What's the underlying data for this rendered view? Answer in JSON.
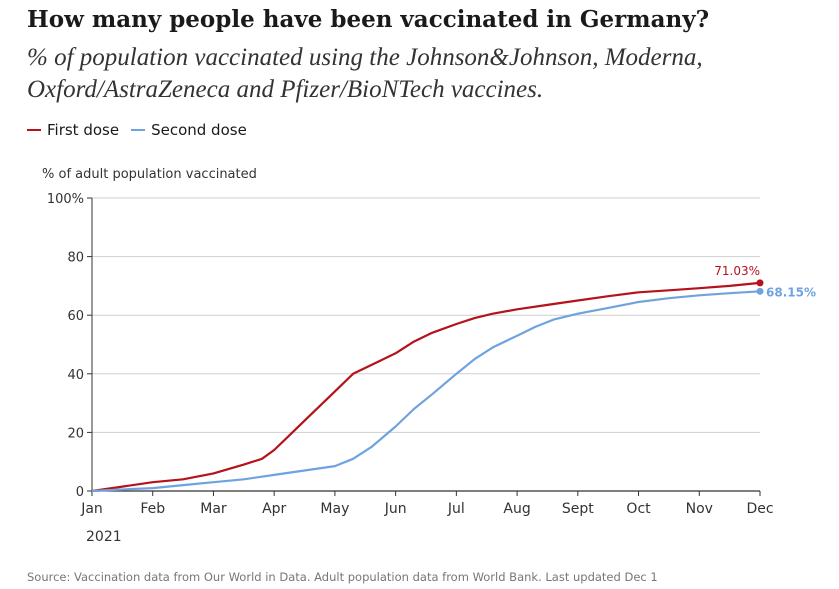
{
  "chart_data": {
    "type": "line",
    "title": "How many people have been vaccinated in Germany?",
    "subtitle": "% of population vaccinated using the Johnson&Johnson, Moderna, Oxford/AstraZeneca and Pfizer/BioNTech vaccines.",
    "ylabel": "% of adult population vaccinated",
    "xlabel": "",
    "ylim": [
      0,
      100
    ],
    "yticks": [
      0,
      20,
      40,
      60,
      80,
      100
    ],
    "ytick_labels": [
      "0",
      "20",
      "40",
      "60",
      "80",
      "100%"
    ],
    "xlim": [
      0,
      11
    ],
    "xticks": [
      0,
      1,
      2,
      3,
      4,
      5,
      6,
      7,
      8,
      9,
      10,
      11
    ],
    "xtick_labels": [
      "Jan",
      "Feb",
      "Mar",
      "Apr",
      "May",
      "Jun",
      "Jul",
      "Aug",
      "Sept",
      "Oct",
      "Nov",
      "Dec"
    ],
    "year_label": "2021",
    "grid": "horizontal",
    "legend_position": "top-left",
    "series": [
      {
        "name": "First dose",
        "color": "#b5121b",
        "end_label": "71.03%",
        "x": [
          0,
          0.5,
          1,
          1.5,
          2,
          2.5,
          2.8,
          3,
          3.3,
          3.6,
          4,
          4.3,
          4.6,
          5,
          5.3,
          5.6,
          6,
          6.3,
          6.6,
          7,
          7.5,
          8,
          8.5,
          9,
          9.5,
          10,
          10.5,
          11
        ],
        "y": [
          0,
          1.5,
          3,
          4,
          6,
          9,
          11,
          14,
          20,
          26,
          34,
          40,
          43,
          47,
          51,
          54,
          57,
          59,
          60.5,
          62,
          63.5,
          65,
          66.5,
          67.8,
          68.5,
          69.2,
          70,
          71.03
        ]
      },
      {
        "name": "Second dose",
        "color": "#6fa3e0",
        "end_label": "68.15%",
        "x": [
          0,
          0.5,
          1,
          1.5,
          2,
          2.5,
          3,
          3.5,
          4,
          4.3,
          4.6,
          5,
          5.3,
          5.6,
          6,
          6.3,
          6.6,
          7,
          7.3,
          7.6,
          8,
          8.5,
          9,
          9.5,
          10,
          10.5,
          11
        ],
        "y": [
          0,
          0.5,
          1,
          2,
          3,
          4,
          5.5,
          7,
          8.5,
          11,
          15,
          22,
          28,
          33,
          40,
          45,
          49,
          53,
          56,
          58.5,
          60.5,
          62.5,
          64.5,
          65.8,
          66.8,
          67.5,
          68.15
        ]
      }
    ]
  },
  "source": "Source: Vaccination data from Our World in Data. Adult population data from World Bank. Last updated Dec 1"
}
